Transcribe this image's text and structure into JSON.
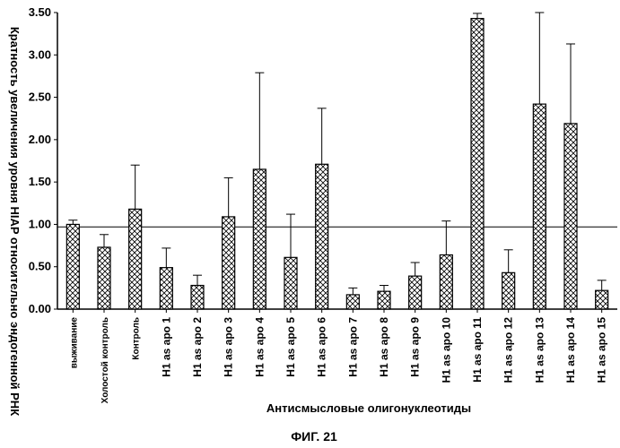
{
  "chart_data": {
    "type": "bar",
    "title": "",
    "ylabel": "Кратность увеличения уровня HIAP относительно эндогенной РНК",
    "xlabel": "Антисмысловые олигонуклеотиды",
    "ylim": [
      0,
      3.5
    ],
    "yticks": [
      "0.00",
      "0.50",
      "1.00",
      "1.50",
      "2.00",
      "2.50",
      "3.00",
      "3.50"
    ],
    "reference_line": 0.97,
    "grid": false,
    "pattern": "crosshatch",
    "categories": [
      "выживание",
      "Холостой контроль",
      "Контроль",
      "H1 as apo 1",
      "H1 as apo 2",
      "H1 as apo 3",
      "H1 as apo 4",
      "H1 as apo 5",
      "H1 as apo 6",
      "H1 as apo 7",
      "H1 as apo 8",
      "H1 as apo 9",
      "H1 as apo 10",
      "H1 as apo 11",
      "H1 as apo 12",
      "H1 as apo 13",
      "H1 as apo 14",
      "H1 as apo 15"
    ],
    "series": [
      {
        "values": [
          1.0,
          0.73,
          1.18,
          0.49,
          0.28,
          1.09,
          1.65,
          0.61,
          1.71,
          0.17,
          0.21,
          0.39,
          0.64,
          3.43,
          0.43,
          2.42,
          2.19,
          0.22
        ],
        "error_upper": [
          0.05,
          0.15,
          0.52,
          0.23,
          0.12,
          0.46,
          1.14,
          0.51,
          0.66,
          0.08,
          0.07,
          0.16,
          0.4,
          0.06,
          0.27,
          1.08,
          0.94,
          0.12
        ]
      }
    ]
  },
  "caption": "ФИГ. 21"
}
